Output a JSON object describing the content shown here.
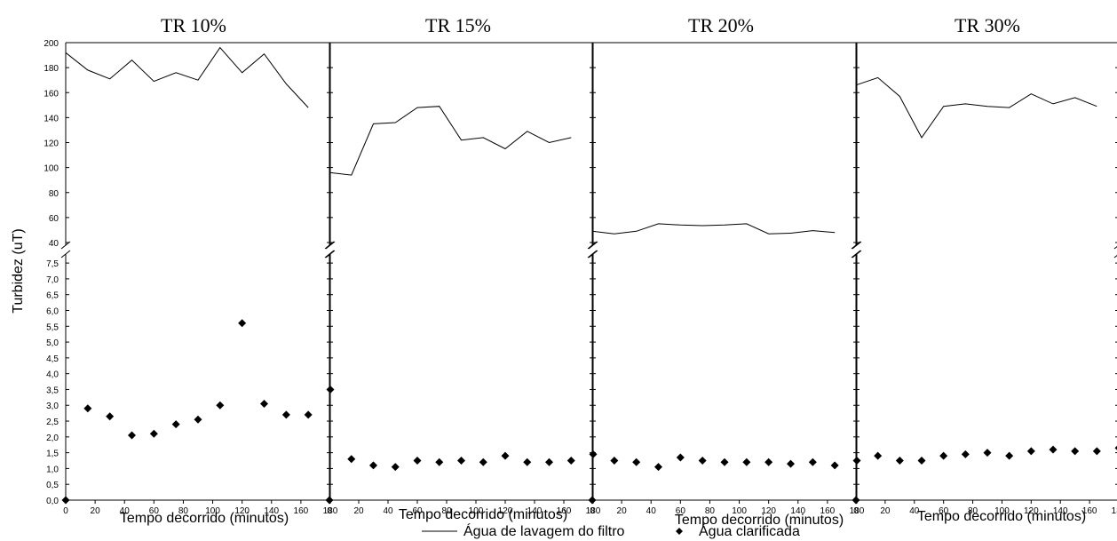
{
  "chart_data": {
    "type": "line",
    "ylabel": "Turbidez (uT)",
    "xlabel": "Tempo decorrido (minutos)",
    "x_ticks": [
      0,
      20,
      40,
      60,
      80,
      100,
      120,
      140,
      160,
      180
    ],
    "xlim": [
      0,
      180
    ],
    "y_upper_ticks": [
      "40",
      "60",
      "80",
      "100",
      "120",
      "140",
      "160",
      "180",
      "200"
    ],
    "y_upper_values": [
      40,
      60,
      80,
      100,
      120,
      140,
      160,
      180,
      200
    ],
    "y_upper_range": [
      40,
      200
    ],
    "y_lower_ticks": [
      "0,0",
      "0,5",
      "1,0",
      "1,5",
      "2,0",
      "2,5",
      "3,0",
      "3,5",
      "4,0",
      "4,5",
      "5,0",
      "5,5",
      "6,0",
      "6,5",
      "7,0",
      "7,5"
    ],
    "y_lower_values": [
      0,
      0.5,
      1,
      1.5,
      2,
      2.5,
      3,
      3.5,
      4,
      4.5,
      5,
      5.5,
      6,
      6.5,
      7,
      7.5
    ],
    "y_lower_range": [
      0,
      7.7
    ],
    "broken_axis": true,
    "grid": false,
    "legend_position": "bottom-center",
    "legend": [
      {
        "name": "Água de lavagem do filtro",
        "style": "line"
      },
      {
        "name": "Água clarificada",
        "style": "diamond"
      }
    ],
    "panels": [
      {
        "title": "TR 10%",
        "xlabel": "Tempo decorrido (minutos)",
        "series": [
          {
            "name": "Água de lavagem do filtro",
            "style": "line",
            "x": [
              0,
              15,
              30,
              45,
              60,
              75,
              90,
              105,
              120,
              135,
              150,
              165
            ],
            "y": [
              192,
              178,
              171,
              186,
              169,
              176,
              170,
              196,
              176,
              191,
              167,
              148
            ]
          },
          {
            "name": "Água clarificada",
            "style": "diamond",
            "x": [
              0,
              15,
              30,
              45,
              60,
              75,
              90,
              105,
              120,
              135,
              150,
              165,
              180
            ],
            "y": [
              0,
              2.9,
              2.65,
              2.05,
              2.1,
              2.4,
              2.55,
              3.0,
              5.6,
              3.05,
              2.7,
              2.7,
              3.5
            ]
          }
        ]
      },
      {
        "title": "TR 15%",
        "xlabel": "Tempo decorrido (minutos)",
        "series": [
          {
            "name": "Água de lavagem do filtro",
            "style": "line",
            "x": [
              0,
              15,
              30,
              45,
              60,
              75,
              90,
              105,
              120,
              135,
              150,
              165
            ],
            "y": [
              96,
              94,
              135,
              136,
              148,
              149,
              122,
              124,
              115,
              129,
              120,
              124
            ]
          },
          {
            "name": "Água clarificada",
            "style": "diamond",
            "x": [
              0,
              15,
              30,
              45,
              60,
              75,
              90,
              105,
              120,
              135,
              150,
              165,
              180
            ],
            "y": [
              0,
              1.3,
              1.1,
              1.05,
              1.25,
              1.2,
              1.25,
              1.2,
              1.4,
              1.2,
              1.2,
              1.25,
              1.45
            ]
          }
        ]
      },
      {
        "title": "TR 20%",
        "xlabel": "Tempo decorrido (minutos)",
        "series": [
          {
            "name": "Água de lavagem do filtro",
            "style": "line",
            "x": [
              0,
              15,
              30,
              45,
              60,
              75,
              90,
              105,
              120,
              135,
              150,
              165
            ],
            "y": [
              49,
              47,
              49,
              55,
              54,
              53.5,
              54,
              55,
              47,
              47.5,
              49.5,
              48
            ]
          },
          {
            "name": "Água clarificada",
            "style": "diamond",
            "x": [
              0,
              15,
              30,
              45,
              60,
              75,
              90,
              105,
              120,
              135,
              150,
              165,
              180
            ],
            "y": [
              0,
              1.25,
              1.2,
              1.05,
              1.35,
              1.25,
              1.2,
              1.2,
              1.2,
              1.15,
              1.2,
              1.1,
              1.25
            ]
          }
        ]
      },
      {
        "title": "TR 30%",
        "xlabel": "Tempo decorrido (minutos)",
        "series": [
          {
            "name": "Água de lavagem do filtro",
            "style": "line",
            "x": [
              0,
              15,
              30,
              45,
              60,
              75,
              90,
              105,
              120,
              135,
              150,
              165
            ],
            "y": [
              166,
              172,
              157,
              124,
              149,
              151,
              149,
              148,
              159,
              151,
              156,
              149
            ]
          },
          {
            "name": "Água clarificada",
            "style": "diamond",
            "x": [
              0,
              15,
              30,
              45,
              60,
              75,
              90,
              105,
              120,
              135,
              150,
              165,
              180
            ],
            "y": [
              0,
              1.4,
              1.25,
              1.25,
              1.4,
              1.45,
              1.5,
              1.4,
              1.55,
              1.6,
              1.55,
              1.55,
              1.65
            ]
          }
        ]
      }
    ]
  }
}
